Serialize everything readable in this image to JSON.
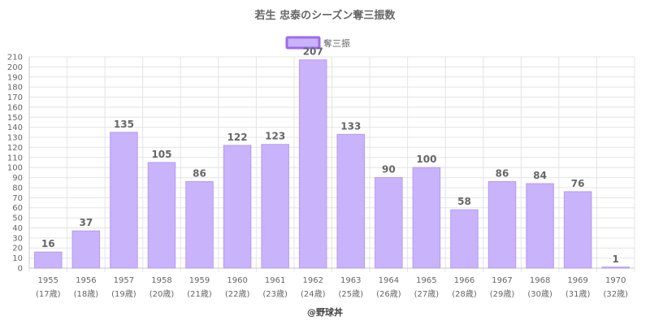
{
  "chart_data": {
    "type": "bar",
    "title": "若生 忠泰のシーズン奪三振数",
    "legend": {
      "label": "奪三振",
      "position": "top"
    },
    "categories": [
      "1955",
      "1956",
      "1957",
      "1958",
      "1959",
      "1960",
      "1961",
      "1962",
      "1963",
      "1964",
      "1965",
      "1966",
      "1967",
      "1968",
      "1969",
      "1970"
    ],
    "ages": [
      "(17歳)",
      "(18歳)",
      "(19歳)",
      "(20歳)",
      "(21歳)",
      "(22歳)",
      "(23歳)",
      "(24歳)",
      "(25歳)",
      "(26歳)",
      "(27歳)",
      "(28歳)",
      "(29歳)",
      "(30歳)",
      "(31歳)",
      "(32歳)"
    ],
    "series": [
      {
        "name": "奪三振",
        "values": [
          16,
          37,
          135,
          105,
          86,
          122,
          123,
          207,
          133,
          90,
          100,
          58,
          86,
          84,
          76,
          1
        ]
      }
    ],
    "ylim": [
      0,
      210
    ],
    "ytick_step": 10,
    "grid": true,
    "colors": {
      "bar_fill": "#c9b3fb",
      "bar_stroke": "#b69af5",
      "legend_stroke": "#9b6cf0",
      "grid": "#e4e4e4",
      "axis": "#c8c8c8"
    }
  },
  "footer": "@野球丼"
}
